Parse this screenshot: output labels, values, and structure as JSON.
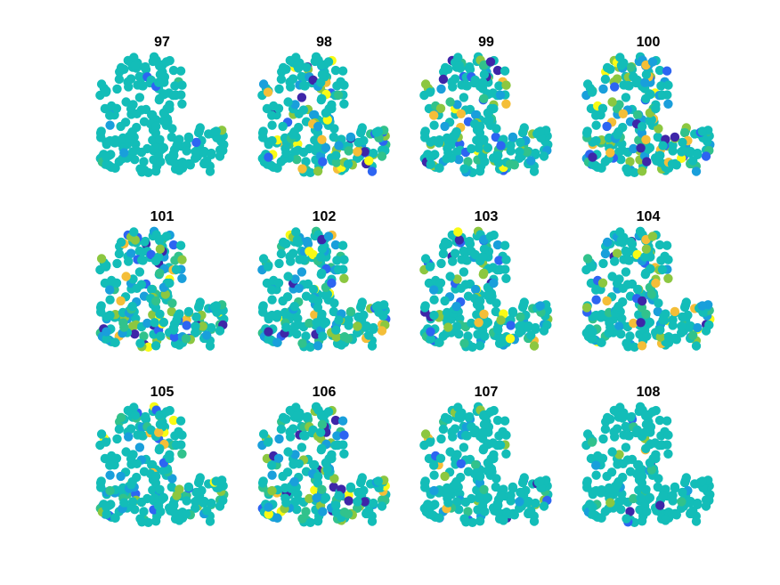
{
  "chart_data": {
    "type": "scatter",
    "layout": {
      "rows": 3,
      "cols": 4
    },
    "axes_visible": false,
    "grid": false,
    "colormap": "parula",
    "colormap_stops": [
      "#3e26a8",
      "#2d65f2",
      "#199fdb",
      "#0dbbb5",
      "#31c28c",
      "#8cc740",
      "#f4be38",
      "#f9fb15"
    ],
    "base_color": "#13bdb8",
    "panels": [
      {
        "title": "97",
        "variation": 0.04
      },
      {
        "title": "98",
        "variation": 0.3
      },
      {
        "title": "99",
        "variation": 0.36
      },
      {
        "title": "100",
        "variation": 0.42
      },
      {
        "title": "101",
        "variation": 0.46
      },
      {
        "title": "102",
        "variation": 0.4
      },
      {
        "title": "103",
        "variation": 0.3
      },
      {
        "title": "104",
        "variation": 0.32
      },
      {
        "title": "105",
        "variation": 0.34
      },
      {
        "title": "106",
        "variation": 0.44
      },
      {
        "title": "107",
        "variation": 0.18
      },
      {
        "title": "108",
        "variation": 0.14
      }
    ]
  }
}
